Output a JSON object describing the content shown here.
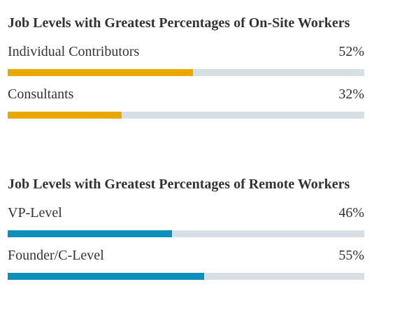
{
  "chart_data": [
    {
      "type": "bar",
      "title": "Job Levels with Greatest Percentages of On-Site Workers",
      "categories": [
        "Individual Contributors",
        "Consultants"
      ],
      "values": [
        52,
        32
      ],
      "value_labels": [
        "52%",
        "32%"
      ],
      "ylim": [
        0,
        100
      ],
      "color": "#e8a800",
      "track_color": "#d5dfe4"
    },
    {
      "type": "bar",
      "title": "Job Levels with Greatest Percentages of Remote Workers",
      "categories": [
        "VP-Level",
        "Founder/C-Level"
      ],
      "values": [
        46,
        55
      ],
      "value_labels": [
        "46%",
        "55%"
      ],
      "ylim": [
        0,
        100
      ],
      "color": "#0d8fbc",
      "track_color": "#d5dfe4"
    }
  ]
}
